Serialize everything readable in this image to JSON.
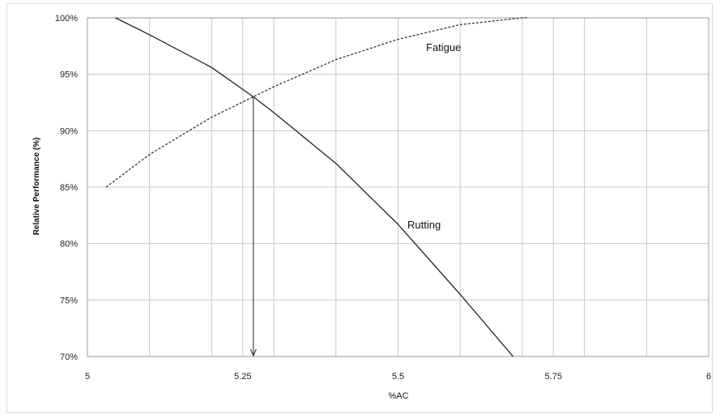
{
  "chart_data": {
    "type": "line",
    "title": "",
    "xlabel": "%AC",
    "ylabel": "Relative Performance (%)",
    "xlim": [
      5,
      6
    ],
    "ylim": [
      70,
      100
    ],
    "x_ticks": [
      5,
      5.1,
      5.2,
      5.25,
      5.3,
      5.4,
      5.5,
      5.6,
      5.7,
      5.75,
      5.8,
      5.9,
      6
    ],
    "x_tick_labels": [
      {
        "value": 5,
        "label": "5"
      },
      {
        "value": 5.25,
        "label": "5.25"
      },
      {
        "value": 5.5,
        "label": "5.5"
      },
      {
        "value": 5.75,
        "label": "5.75"
      },
      {
        "value": 6,
        "label": "6"
      }
    ],
    "y_ticks": [
      70,
      75,
      80,
      85,
      90,
      95,
      100
    ],
    "y_tick_labels": [
      "70%",
      "75%",
      "80%",
      "85%",
      "90%",
      "95%",
      "100%"
    ],
    "grid": true,
    "legend": "none",
    "series": [
      {
        "style": "dashed",
        "color": "#333333",
        "x": [
          5.03,
          5.1,
          5.2,
          5.267,
          5.3,
          5.4,
          5.5,
          5.6,
          5.7,
          5.71
        ],
        "y": [
          85,
          87.9,
          91.2,
          93,
          93.9,
          96.3,
          98.1,
          99.4,
          100,
          100
        ]
      },
      {
        "style": "solid",
        "color": "#222222",
        "x": [
          5.045,
          5.1,
          5.2,
          5.267,
          5.3,
          5.4,
          5.5,
          5.6,
          5.685
        ],
        "y": [
          100,
          98.5,
          95.6,
          93,
          91.6,
          87.1,
          81.7,
          75.5,
          70
        ]
      }
    ],
    "annotations": [
      {
        "text": "Fatigue",
        "x": 5.545,
        "y": 97.4
      },
      {
        "text": "Rutting",
        "x": 5.515,
        "y": 81.7
      }
    ],
    "arrow": {
      "x": 5.267,
      "y_from": 93,
      "y_to": 70
    }
  }
}
